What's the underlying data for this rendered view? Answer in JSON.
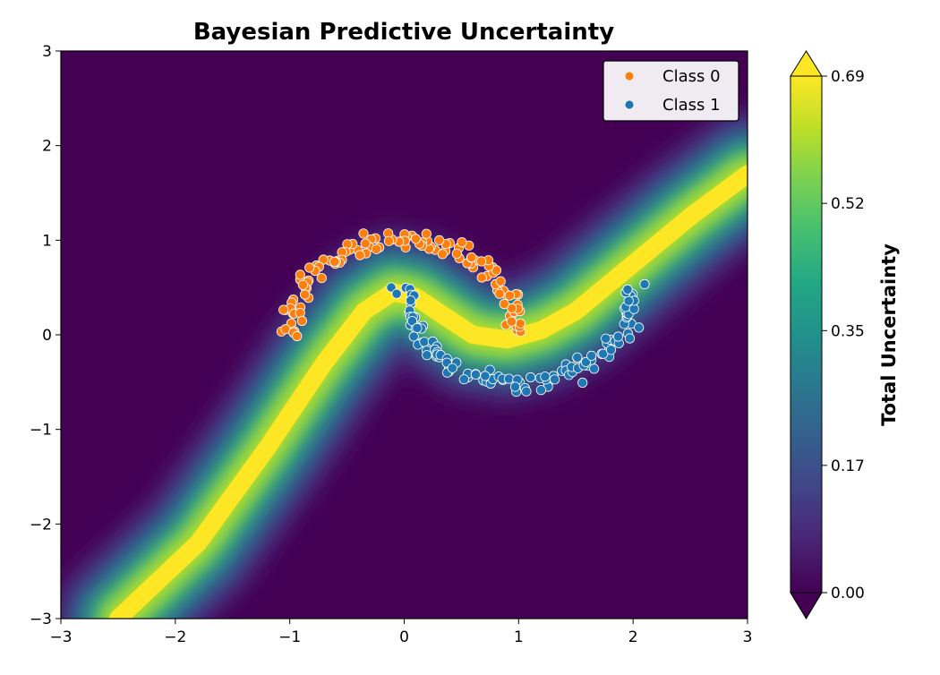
{
  "chart_data": {
    "type": "heatmap",
    "title": "Bayesian Predictive Uncertainty",
    "xlabel": "",
    "ylabel": "",
    "xlim": [
      -3,
      3
    ],
    "ylim": [
      -3,
      3
    ],
    "x_ticks": [
      "−3",
      "−2",
      "−1",
      "0",
      "1",
      "2",
      "3"
    ],
    "y_ticks": [
      "3",
      "2",
      "1",
      "0",
      "−1",
      "−2",
      "−3"
    ],
    "x_tick_values": [
      -3,
      -2,
      -1,
      0,
      1,
      2,
      3
    ],
    "y_tick_values": [
      3,
      2,
      1,
      0,
      -1,
      -2,
      -3
    ],
    "colormap": "viridis",
    "colorbar": {
      "label": "Total Uncertainty",
      "min": 0.0,
      "max": 0.69,
      "ticks": [
        "0.00",
        "0.17",
        "0.35",
        "0.52",
        "0.69"
      ],
      "tick_values": [
        0.0,
        0.17,
        0.35,
        0.52,
        0.69
      ]
    },
    "decision_boundary": {
      "description_points_x": [
        -2.5,
        -1.8,
        -1.2,
        -0.7,
        -0.35,
        -0.1,
        0.1,
        0.35,
        0.6,
        0.9,
        1.2,
        1.5,
        2.0,
        2.5,
        3.0
      ],
      "description_points_y": [
        -3.0,
        -2.2,
        -1.2,
        -0.3,
        0.25,
        0.45,
        0.4,
        0.2,
        0.0,
        -0.05,
        0.05,
        0.25,
        0.75,
        1.25,
        1.7
      ]
    },
    "legend": {
      "position": "top-right",
      "entries": [
        {
          "label": "Class 0",
          "color": "#ff7f0e"
        },
        {
          "label": "Class 1",
          "color": "#1f77b4"
        }
      ]
    },
    "series": [
      {
        "name": "Class 0",
        "color": "#ff7f0e",
        "shape": "upper-moon",
        "n": 120
      },
      {
        "name": "Class 1",
        "color": "#1f77b4",
        "shape": "lower-moon",
        "n": 120
      }
    ]
  }
}
